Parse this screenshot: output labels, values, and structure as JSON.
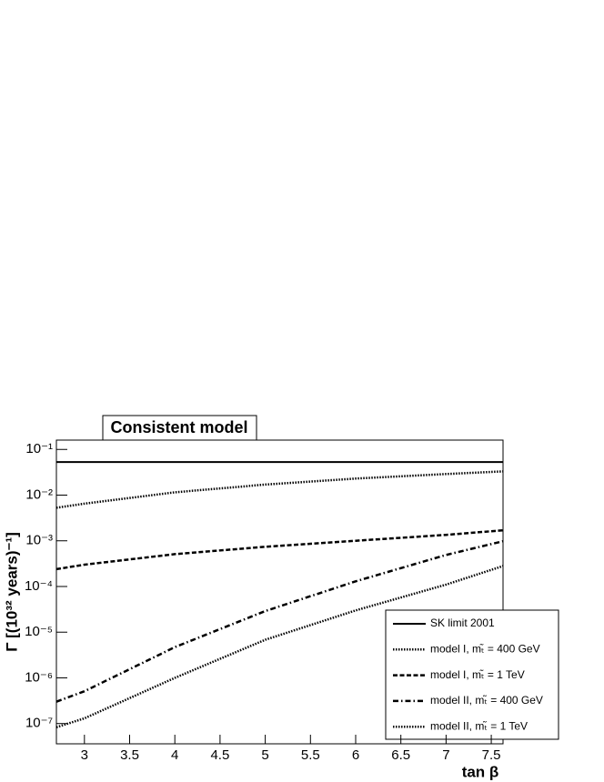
{
  "chart_data": {
    "type": "line",
    "title": "Consistent model",
    "x_label": "tan β",
    "y_label": "Γ [(10³² years)⁻¹]",
    "log_y": true,
    "xlim": [
      2.69,
      7.63
    ],
    "ylim": [
      3.6e-08,
      0.16
    ],
    "xticks": [
      3,
      3.5,
      4,
      4.5,
      5,
      5.5,
      6,
      6.5,
      7,
      7.5
    ],
    "yticks": [
      {
        "value": 1e-07,
        "label": "10⁻⁷"
      },
      {
        "value": 1e-06,
        "label": "10⁻⁶"
      },
      {
        "value": 1e-05,
        "label": "10⁻⁵"
      },
      {
        "value": 0.0001,
        "label": "10⁻⁴"
      },
      {
        "value": 0.001,
        "label": "10⁻³"
      },
      {
        "value": 0.01,
        "label": "10⁻²"
      },
      {
        "value": 0.1,
        "label": "10⁻¹"
      }
    ],
    "x": [
      2.69,
      3,
      4,
      5,
      6,
      7,
      7.63
    ],
    "legend": "lower right",
    "series": [
      {
        "name": "SK limit 2001",
        "color": "#000000",
        "dash": "solid",
        "values": [
          0.053,
          0.053,
          0.053,
          0.053,
          0.053,
          0.053,
          0.053
        ]
      },
      {
        "name": "model I, mₜ̃ = 400 GeV",
        "color": "#000000",
        "dash": "dotted",
        "values": [
          0.0053,
          0.0065,
          0.0115,
          0.017,
          0.023,
          0.029,
          0.033
        ]
      },
      {
        "name": "model I, mₜ̃ = 1 TeV",
        "color": "#000000",
        "dash": "dashed",
        "values": [
          0.00024,
          0.0003,
          0.00051,
          0.00074,
          0.001,
          0.00135,
          0.0017
        ]
      },
      {
        "name": "model II, mₜ̃ = 400 GeV",
        "color": "#000000",
        "dash": "dashdot",
        "values": [
          3e-07,
          5.1e-07,
          4.7e-06,
          2.9e-05,
          0.00013,
          0.00049,
          0.00098
        ]
      },
      {
        "name": "model II, mₜ̃ = 1 TeV",
        "color": "#000000",
        "dash": "dotted",
        "values": [
          8.3e-08,
          1.3e-07,
          1e-06,
          6.8e-06,
          3e-05,
          0.00011,
          0.00028
        ]
      }
    ]
  }
}
